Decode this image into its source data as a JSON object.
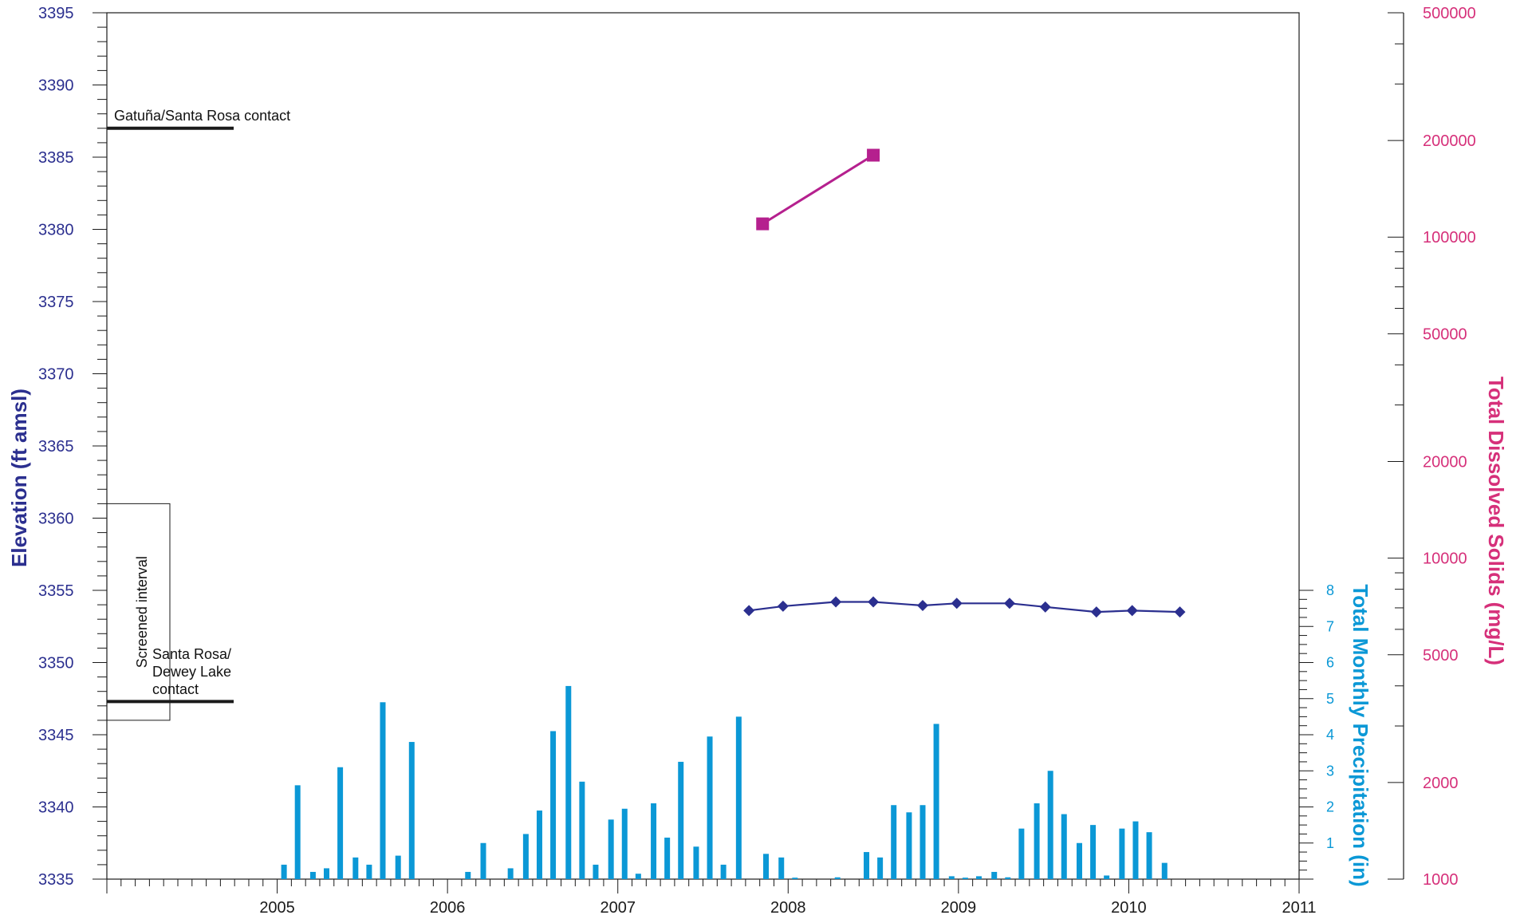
{
  "chart_data": {
    "type": "line",
    "colors": {
      "elevation": "#2b2f8f",
      "tds": "#b5208e",
      "tds_axis": "#d6307a",
      "precipitation": "#0b98d6",
      "annotation": "#111111"
    },
    "x_axis": {
      "ticks": [
        "2005",
        "2006",
        "2007",
        "2008",
        "2009",
        "2010",
        "2011"
      ],
      "range": [
        2004.0,
        2011.0
      ]
    },
    "y_left": {
      "label": "Elevation (ft amsl)",
      "range": [
        3335,
        3395
      ],
      "ticks": [
        "3395",
        "3390",
        "3385",
        "3380",
        "3375",
        "3370",
        "3365",
        "3360",
        "3355",
        "3350",
        "3345",
        "3340",
        "3335"
      ]
    },
    "y_precip": {
      "label": "Total Monthly Precipitation (in)",
      "range": [
        0,
        8
      ],
      "ticks": [
        "1",
        "2",
        "3",
        "4",
        "5",
        "6",
        "7",
        "8"
      ]
    },
    "y_right": {
      "label": "Total Dissolved Solids (mg/L)",
      "scale": "log",
      "range": [
        1000,
        500000
      ],
      "ticks": [
        "500000",
        "200000",
        "100000",
        "50000",
        "20000",
        "10000",
        "5000",
        "2000",
        "1000"
      ]
    },
    "annotations": {
      "top_contact": "Gatuña/Santa Rosa contact",
      "top_contact_elevation": 3387,
      "screened_interval": "Screened interval",
      "screened_top": 3361,
      "screened_bottom": 3346,
      "bottom_contact_line1": "Santa Rosa/",
      "bottom_contact_line2": "Dewey Lake",
      "bottom_contact_line3": "contact",
      "bottom_contact_elevation": 3347.3
    },
    "series": [
      {
        "type": "line",
        "marker": "diamond",
        "axis": "elevation",
        "x": [
          2007.77,
          2007.97,
          2008.28,
          2008.5,
          2008.79,
          2008.99,
          2009.3,
          2009.51,
          2009.81,
          2010.02,
          2010.3
        ],
        "y": [
          3353.6,
          3353.9,
          3354.2,
          3354.2,
          3353.95,
          3354.1,
          3354.1,
          3353.85,
          3353.5,
          3353.6,
          3353.5
        ]
      },
      {
        "type": "line",
        "marker": "square",
        "axis": "tds",
        "x": [
          2007.85,
          2008.5
        ],
        "y": [
          110000,
          180000
        ]
      },
      {
        "type": "bar",
        "axis": "precipitation",
        "x": [
          2005.04,
          2005.12,
          2005.21,
          2005.29,
          2005.37,
          2005.46,
          2005.54,
          2005.62,
          2005.71,
          2005.79,
          2006.12,
          2006.21,
          2006.37,
          2006.46,
          2006.54,
          2006.62,
          2006.71,
          2006.79,
          2006.87,
          2006.96,
          2007.04,
          2007.12,
          2007.21,
          2007.29,
          2007.37,
          2007.46,
          2007.54,
          2007.62,
          2007.71,
          2007.87,
          2007.96,
          2008.04,
          2008.29,
          2008.46,
          2008.54,
          2008.62,
          2008.71,
          2008.79,
          2008.87,
          2008.96,
          2009.04,
          2009.12,
          2009.21,
          2009.29,
          2009.37,
          2009.46,
          2009.54,
          2009.62,
          2009.71,
          2009.79,
          2009.87,
          2009.96,
          2010.04,
          2010.12,
          2010.21
        ],
        "y": [
          0.4,
          2.6,
          0.2,
          0.3,
          3.1,
          0.6,
          0.4,
          4.9,
          0.65,
          3.8,
          0.2,
          1.0,
          0.3,
          1.25,
          1.9,
          4.1,
          5.35,
          2.7,
          0.4,
          1.65,
          1.95,
          0.15,
          2.1,
          1.15,
          3.25,
          0.9,
          3.95,
          0.4,
          4.5,
          0.7,
          0.6,
          0.04,
          0.05,
          0.75,
          0.6,
          2.05,
          1.85,
          2.05,
          4.3,
          0.08,
          0.04,
          0.08,
          0.2,
          0.05,
          1.4,
          2.1,
          3.0,
          1.8,
          1.0,
          1.5,
          0.1,
          1.4,
          1.6,
          1.3,
          0.45
        ]
      }
    ]
  }
}
